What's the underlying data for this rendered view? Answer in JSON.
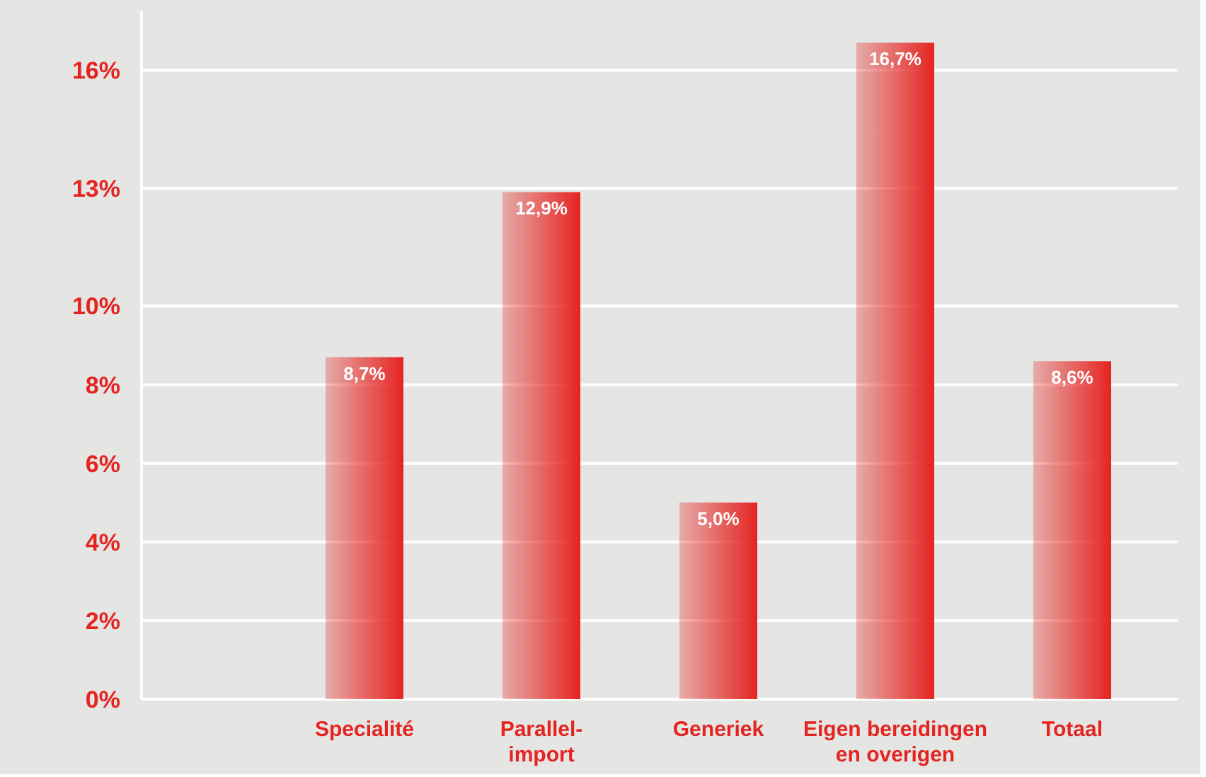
{
  "chart_data": {
    "type": "bar",
    "categories": [
      "Specialité",
      "Parallel-\nimport",
      "Generiek",
      "Eigen bereidingen\nen overigen",
      "Totaal"
    ],
    "values": [
      8.7,
      12.9,
      5.0,
      16.7,
      8.6
    ],
    "value_labels": [
      "8,7%",
      "12,9%",
      "5,0%",
      "16,7%",
      "8,6%"
    ],
    "color": "#e52421",
    "ylim": [
      0,
      17.5
    ],
    "yticks": [
      {
        "value": 0,
        "label": "0%"
      },
      {
        "value": 2,
        "label": "2%"
      },
      {
        "value": 4,
        "label": "4%"
      },
      {
        "value": 6,
        "label": "6%"
      },
      {
        "value": 8,
        "label": "8%"
      },
      {
        "value": 10,
        "label": "10%"
      },
      {
        "value": 13,
        "label": "13%"
      },
      {
        "value": 16,
        "label": "16%"
      }
    ],
    "grid": "y"
  }
}
